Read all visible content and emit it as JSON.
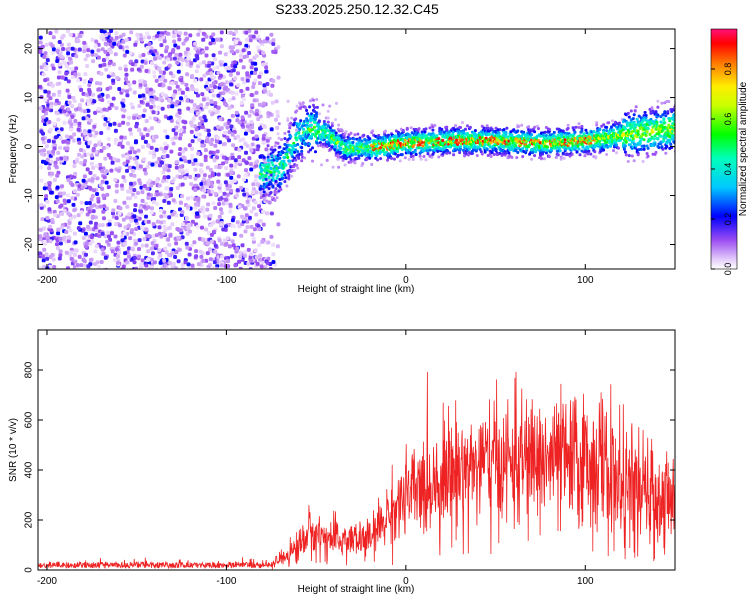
{
  "figure_title": "S233.2025.250.12.32.C45",
  "chart_data": [
    {
      "type": "heatmap",
      "xlabel": "Height of straight line (km)",
      "ylabel": "Frequency (Hz)",
      "xlim": [
        -205,
        150
      ],
      "ylim": [
        -25,
        24
      ],
      "xticks": [
        -200,
        -100,
        0,
        100
      ],
      "yticks": [
        -20,
        -10,
        0,
        10,
        20
      ],
      "colorbar": {
        "label": "Normalized spectral amplitude",
        "range": [
          0.0,
          0.96
        ],
        "ticks": [
          0.0,
          0.2,
          0.4,
          0.6,
          0.8
        ]
      },
      "ridge": {
        "description_points_x": [
          -80,
          -70,
          -62,
          -55,
          -45,
          -35,
          -20,
          0,
          25,
          50,
          75,
          100,
          110,
          125,
          150
        ],
        "description_points_y": [
          -5,
          -4,
          2,
          4,
          3,
          0,
          0,
          1,
          1.5,
          1.5,
          1,
          1.5,
          2,
          3,
          4
        ]
      }
    },
    {
      "type": "line",
      "xlabel": "Height of straight line (km)",
      "ylabel": "SNR (10 * v/v)",
      "xlim": [
        -205,
        150
      ],
      "ylim": [
        0,
        960
      ],
      "xticks": [
        -200,
        -100,
        0,
        100
      ],
      "yticks": [
        0,
        200,
        400,
        600,
        800
      ],
      "color": "#ee2222",
      "envelope_x": [
        -205,
        -75,
        -60,
        -55,
        -40,
        -20,
        -10,
        0,
        10,
        20,
        40,
        60,
        80,
        100,
        110,
        120,
        140,
        150
      ],
      "envelope_mean": [
        20,
        20,
        90,
        150,
        120,
        120,
        220,
        290,
        330,
        380,
        420,
        430,
        440,
        430,
        420,
        330,
        280,
        260
      ],
      "envelope_spread": [
        10,
        10,
        60,
        80,
        70,
        70,
        110,
        150,
        170,
        200,
        210,
        220,
        220,
        230,
        260,
        220,
        180,
        170
      ]
    }
  ]
}
